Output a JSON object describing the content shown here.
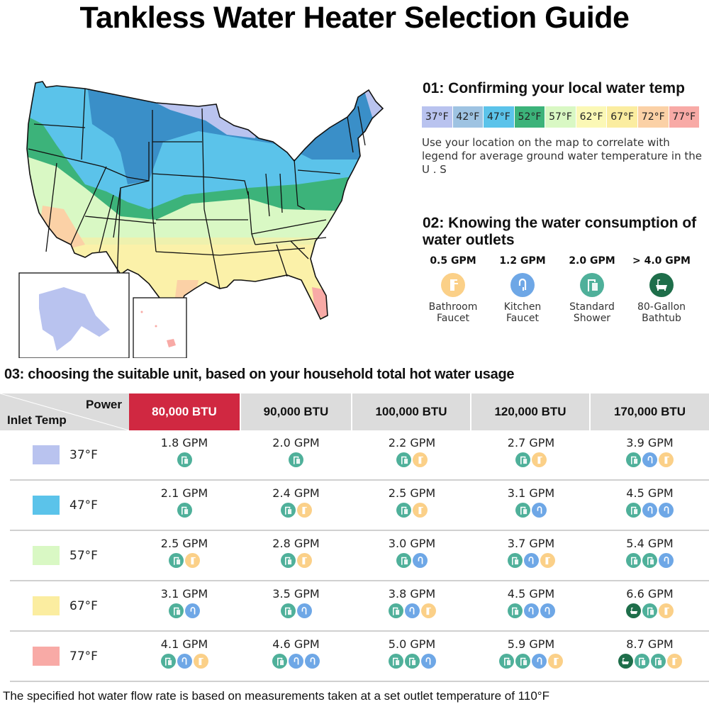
{
  "title": "Tankless Water Heater Selection Guide",
  "colors": {
    "t37": "#b9c3ef",
    "t42": "#9ec3e2",
    "t47": "#5bc3ea",
    "t52": "#3cb37a",
    "t57": "#d9f8c4",
    "t62": "#fbf8b6",
    "t67": "#fbeda0",
    "t72": "#fbd1a6",
    "t77": "#f8aaa6",
    "accent": "#d02841",
    "bathroom_faucet": "#fbd088",
    "kitchen_faucet": "#6ea7e6",
    "shower": "#4fb09a",
    "bathtub": "#1e6e4a"
  },
  "section1": {
    "title": "01:  Confirming your local water temp",
    "legend": [
      {
        "label": "37°F",
        "color": "#b9c3ef"
      },
      {
        "label": "42°F",
        "color": "#9ec3e2"
      },
      {
        "label": "47°F",
        "color": "#5bc3ea"
      },
      {
        "label": "52°F",
        "color": "#3cb37a"
      },
      {
        "label": "57°F",
        "color": "#d9f8c4"
      },
      {
        "label": "62°F",
        "color": "#fbf8b6"
      },
      {
        "label": "67°F",
        "color": "#fbeda0"
      },
      {
        "label": "72°F",
        "color": "#fbd1a6"
      },
      {
        "label": "77°F",
        "color": "#f8aaa6"
      }
    ],
    "description": "Use your location on the map to correlate with legend for average ground water temperature in the U . S"
  },
  "section2": {
    "title": "02:  Knowing the water consumption of water outlets",
    "outlets": [
      {
        "gpm": "0.5 GPM",
        "icon": "bathroom-faucet-icon",
        "line1": "Bathroom",
        "line2": "Faucet"
      },
      {
        "gpm": "1.2 GPM",
        "icon": "kitchen-faucet-icon",
        "line1": "Kitchen",
        "line2": "Faucet"
      },
      {
        "gpm": "2.0 GPM",
        "icon": "shower-icon",
        "line1": "Standard",
        "line2": "Shower"
      },
      {
        "gpm": "> 4.0 GPM",
        "icon": "bathtub-icon",
        "line1": "80-Gallon",
        "line2": "Bathtub"
      }
    ]
  },
  "section3": {
    "title": "03:  choosing the suitable unit, based on your household total hot water usage",
    "corner_power": "Power",
    "corner_inlet": "Inlet Temp",
    "columns": [
      "80,000 BTU",
      "90,000 BTU",
      "100,000 BTU",
      "120,000 BTU",
      "170,000 BTU"
    ],
    "rows": [
      {
        "temp": "37°F",
        "color": "#b9c3ef",
        "cells": [
          {
            "gpm": "1.8 GPM",
            "icons": [
              "shower"
            ]
          },
          {
            "gpm": "2.0 GPM",
            "icons": [
              "shower"
            ]
          },
          {
            "gpm": "2.2 GPM",
            "icons": [
              "shower",
              "bathroom"
            ]
          },
          {
            "gpm": "2.7 GPM",
            "icons": [
              "shower",
              "bathroom"
            ]
          },
          {
            "gpm": "3.9 GPM",
            "icons": [
              "shower",
              "kitchen",
              "bathroom"
            ]
          }
        ]
      },
      {
        "temp": "47°F",
        "color": "#5bc3ea",
        "cells": [
          {
            "gpm": "2.1 GPM",
            "icons": [
              "shower"
            ]
          },
          {
            "gpm": "2.4 GPM",
            "icons": [
              "shower",
              "bathroom"
            ]
          },
          {
            "gpm": "2.5 GPM",
            "icons": [
              "shower",
              "bathroom"
            ]
          },
          {
            "gpm": "3.1 GPM",
            "icons": [
              "shower",
              "kitchen"
            ]
          },
          {
            "gpm": "4.5 GPM",
            "icons": [
              "shower",
              "kitchen",
              "kitchen"
            ]
          }
        ]
      },
      {
        "temp": "57°F",
        "color": "#d9f8c4",
        "cells": [
          {
            "gpm": "2.5 GPM",
            "icons": [
              "shower",
              "bathroom"
            ]
          },
          {
            "gpm": "2.8 GPM",
            "icons": [
              "shower",
              "bathroom"
            ]
          },
          {
            "gpm": "3.0 GPM",
            "icons": [
              "shower",
              "kitchen"
            ]
          },
          {
            "gpm": "3.7 GPM",
            "icons": [
              "shower",
              "kitchen",
              "bathroom"
            ]
          },
          {
            "gpm": "5.4 GPM",
            "icons": [
              "shower",
              "shower",
              "kitchen"
            ]
          }
        ]
      },
      {
        "temp": "67°F",
        "color": "#fbeda0",
        "cells": [
          {
            "gpm": "3.1 GPM",
            "icons": [
              "shower",
              "kitchen"
            ]
          },
          {
            "gpm": "3.5 GPM",
            "icons": [
              "shower",
              "kitchen"
            ]
          },
          {
            "gpm": "3.8 GPM",
            "icons": [
              "shower",
              "kitchen",
              "bathroom"
            ]
          },
          {
            "gpm": "4.5 GPM",
            "icons": [
              "shower",
              "kitchen",
              "kitchen"
            ]
          },
          {
            "gpm": "6.6 GPM",
            "icons": [
              "bathtub",
              "shower",
              "bathroom"
            ]
          }
        ]
      },
      {
        "temp": "77°F",
        "color": "#f8aaa6",
        "cells": [
          {
            "gpm": "4.1 GPM",
            "icons": [
              "shower",
              "kitchen",
              "bathroom"
            ]
          },
          {
            "gpm": "4.6 GPM",
            "icons": [
              "shower",
              "kitchen",
              "kitchen"
            ]
          },
          {
            "gpm": "5.0 GPM",
            "icons": [
              "shower",
              "shower",
              "kitchen"
            ]
          },
          {
            "gpm": "5.9 GPM",
            "icons": [
              "shower",
              "shower",
              "kitchen",
              "bathroom"
            ]
          },
          {
            "gpm": "8.7 GPM",
            "icons": [
              "bathtub",
              "shower",
              "shower",
              "bathroom"
            ]
          }
        ]
      }
    ]
  },
  "footnote": "The specified hot water flow rate is based on measurements taken at a set outlet temperature of 110°F"
}
